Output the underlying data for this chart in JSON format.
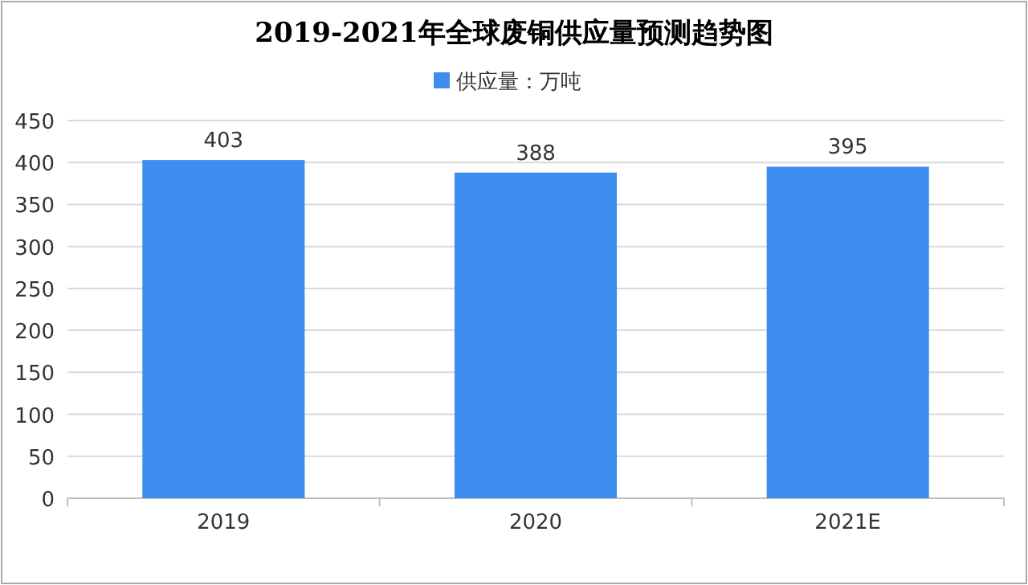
{
  "chart_data": {
    "type": "bar",
    "title": "2019-2021年全球废铜供应量预测趋势图",
    "categories": [
      "2019",
      "2020",
      "2021E"
    ],
    "series": [
      {
        "name": "供应量：万吨",
        "color": "#3e8ef0",
        "values": [
          403,
          388,
          395
        ]
      }
    ],
    "ylim": [
      0,
      450
    ],
    "yticks": [
      0,
      50,
      100,
      150,
      200,
      250,
      300,
      350,
      400,
      450
    ],
    "grid": "y",
    "legend": "top",
    "data_labels": true
  }
}
